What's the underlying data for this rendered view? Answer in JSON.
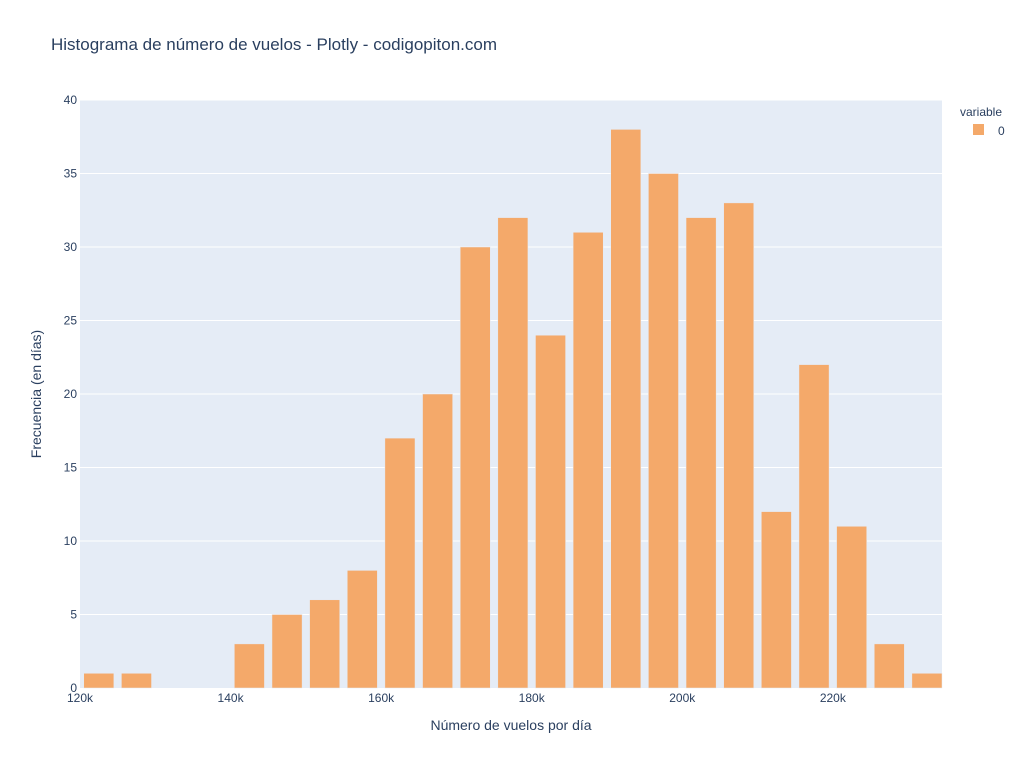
{
  "chart_data": {
    "type": "bar",
    "title": "Histograma de número de vuelos - Plotly - codigopiton.com",
    "xlabel": "Número de vuelos por día",
    "ylabel": "Frecuencia (en días)",
    "xlim": [
      120000,
      234500
    ],
    "ylim": [
      0,
      40
    ],
    "x_ticks": [
      120000,
      140000,
      160000,
      180000,
      200000,
      220000
    ],
    "x_tick_labels": [
      "120k",
      "140k",
      "160k",
      "180k",
      "200k",
      "220k"
    ],
    "y_ticks": [
      0,
      5,
      10,
      15,
      20,
      25,
      30,
      35,
      40
    ],
    "y_tick_labels": [
      "0",
      "5",
      "10",
      "15",
      "20",
      "25",
      "30",
      "35",
      "40"
    ],
    "bin_width": 5000,
    "grid": true,
    "legend": {
      "title": "variable",
      "placement": "top-right"
    },
    "series": [
      {
        "name": "0",
        "color": "#f4a96a",
        "bins": [
          {
            "x0": 120000,
            "x1": 125000,
            "count": 1
          },
          {
            "x0": 125000,
            "x1": 130000,
            "count": 1
          },
          {
            "x0": 130000,
            "x1": 135000,
            "count": 0
          },
          {
            "x0": 135000,
            "x1": 140000,
            "count": 0
          },
          {
            "x0": 140000,
            "x1": 145000,
            "count": 3
          },
          {
            "x0": 145000,
            "x1": 150000,
            "count": 5
          },
          {
            "x0": 150000,
            "x1": 155000,
            "count": 6
          },
          {
            "x0": 155000,
            "x1": 160000,
            "count": 8
          },
          {
            "x0": 160000,
            "x1": 165000,
            "count": 17
          },
          {
            "x0": 165000,
            "x1": 170000,
            "count": 20
          },
          {
            "x0": 170000,
            "x1": 175000,
            "count": 30
          },
          {
            "x0": 175000,
            "x1": 180000,
            "count": 32
          },
          {
            "x0": 180000,
            "x1": 185000,
            "count": 24
          },
          {
            "x0": 185000,
            "x1": 190000,
            "count": 31
          },
          {
            "x0": 190000,
            "x1": 195000,
            "count": 38
          },
          {
            "x0": 195000,
            "x1": 200000,
            "count": 35
          },
          {
            "x0": 200000,
            "x1": 205000,
            "count": 32
          },
          {
            "x0": 205000,
            "x1": 210000,
            "count": 33
          },
          {
            "x0": 210000,
            "x1": 215000,
            "count": 12
          },
          {
            "x0": 215000,
            "x1": 220000,
            "count": 22
          },
          {
            "x0": 220000,
            "x1": 225000,
            "count": 11
          },
          {
            "x0": 225000,
            "x1": 230000,
            "count": 3
          },
          {
            "x0": 230000,
            "x1": 235000,
            "count": 1
          }
        ]
      }
    ]
  },
  "colors": {
    "plot_background": "#e5ecf6",
    "gridline": "#ffffff",
    "text": "#2a3f5f",
    "bar": "#f4a96a"
  }
}
